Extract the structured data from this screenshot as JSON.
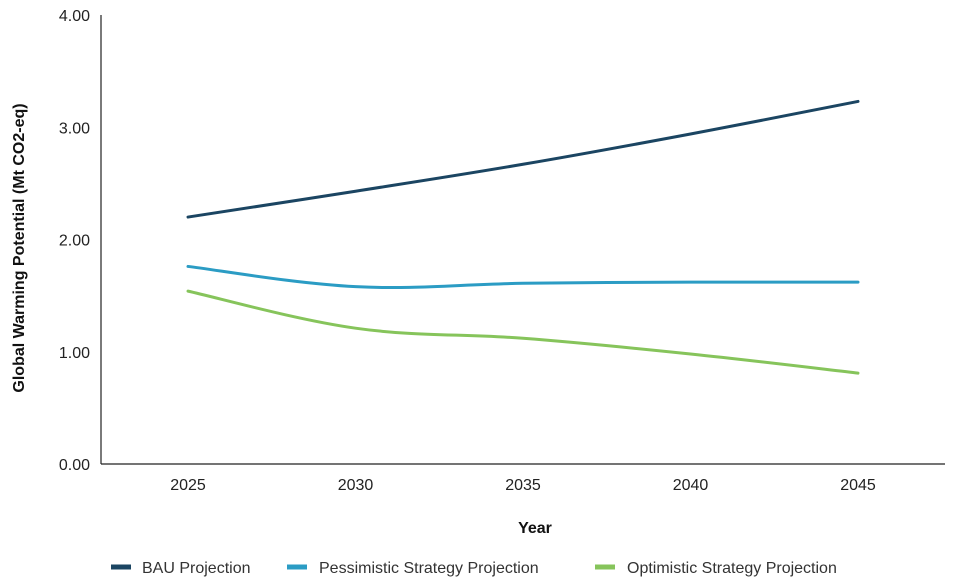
{
  "chart_data": {
    "type": "line",
    "title": "",
    "xlabel": "Year",
    "ylabel": "Global Warming Potential (Mt CO2-eq)",
    "x": [
      2025,
      2030,
      2035,
      2040,
      2045
    ],
    "x_tick_labels": [
      "2025",
      "2030",
      "2035",
      "2040",
      "2045"
    ],
    "y_tick_labels": [
      "0.00",
      "1.00",
      "2.00",
      "3.00",
      "4.00"
    ],
    "ylim": [
      0,
      4
    ],
    "grid": false,
    "legend_position": "bottom",
    "series": [
      {
        "name": "BAU Projection",
        "color": "#1b4562",
        "values": [
          2.2,
          2.43,
          2.67,
          2.94,
          3.23
        ]
      },
      {
        "name": "Pessimistic Strategy Projection",
        "color": "#2b9cc4",
        "values": [
          1.76,
          1.58,
          1.61,
          1.62,
          1.62
        ]
      },
      {
        "name": "Optimistic Strategy Projection",
        "color": "#86c45b",
        "values": [
          1.54,
          1.21,
          1.12,
          0.98,
          0.81
        ]
      }
    ]
  }
}
